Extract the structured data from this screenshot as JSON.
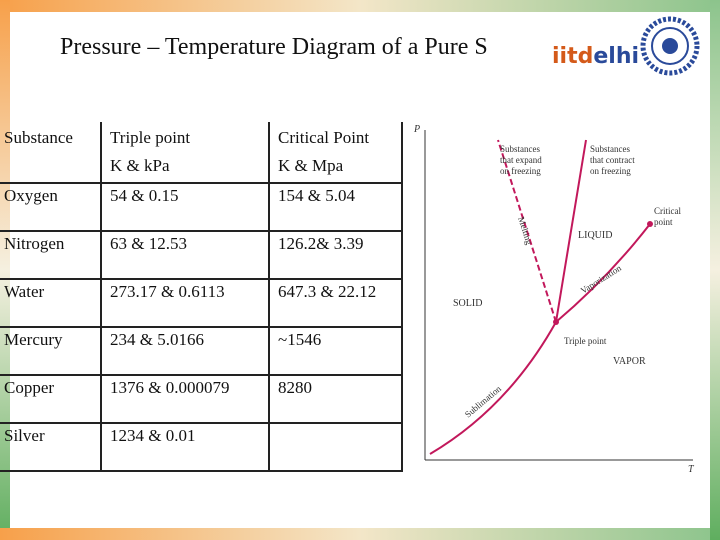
{
  "header": {
    "title": "Pressure – Temperature Diagram of a Pure S",
    "logo": [
      "iitd",
      "elhi"
    ]
  },
  "table": {
    "header": [
      [
        "Substance"
      ],
      [
        "Triple point",
        "K  & kPa"
      ],
      [
        "Critical Point",
        "K & Mpa"
      ]
    ],
    "rows": [
      [
        "Oxygen",
        "54 & 0.15",
        "154 & 5.04"
      ],
      [
        "Nitrogen",
        "63 & 12.53",
        "126.2& 3.39"
      ],
      [
        "Water",
        "273.17 & 0.6113",
        "647.3 & 22.12"
      ],
      [
        "Mercury",
        "234 & 5.0166",
        "~1546"
      ],
      [
        "Copper",
        "1376 & 0.000079",
        "8280"
      ],
      [
        "Silver",
        "1234 & 0.01",
        ""
      ]
    ]
  },
  "diagram": {
    "p_axis": "P",
    "t_axis": "T",
    "expand": [
      "Substances",
      "that expand",
      "on freezing"
    ],
    "contract": [
      "Substances",
      "that contract",
      "on freezing"
    ],
    "melting": "Melting",
    "liquid": "LIQUID",
    "critical": [
      "Critical",
      "point"
    ],
    "vaporization": "Vaporization",
    "solid": "SOLID",
    "triple": "Triple point",
    "vapor": "VAPOR",
    "sublimation": "Sublimation"
  }
}
